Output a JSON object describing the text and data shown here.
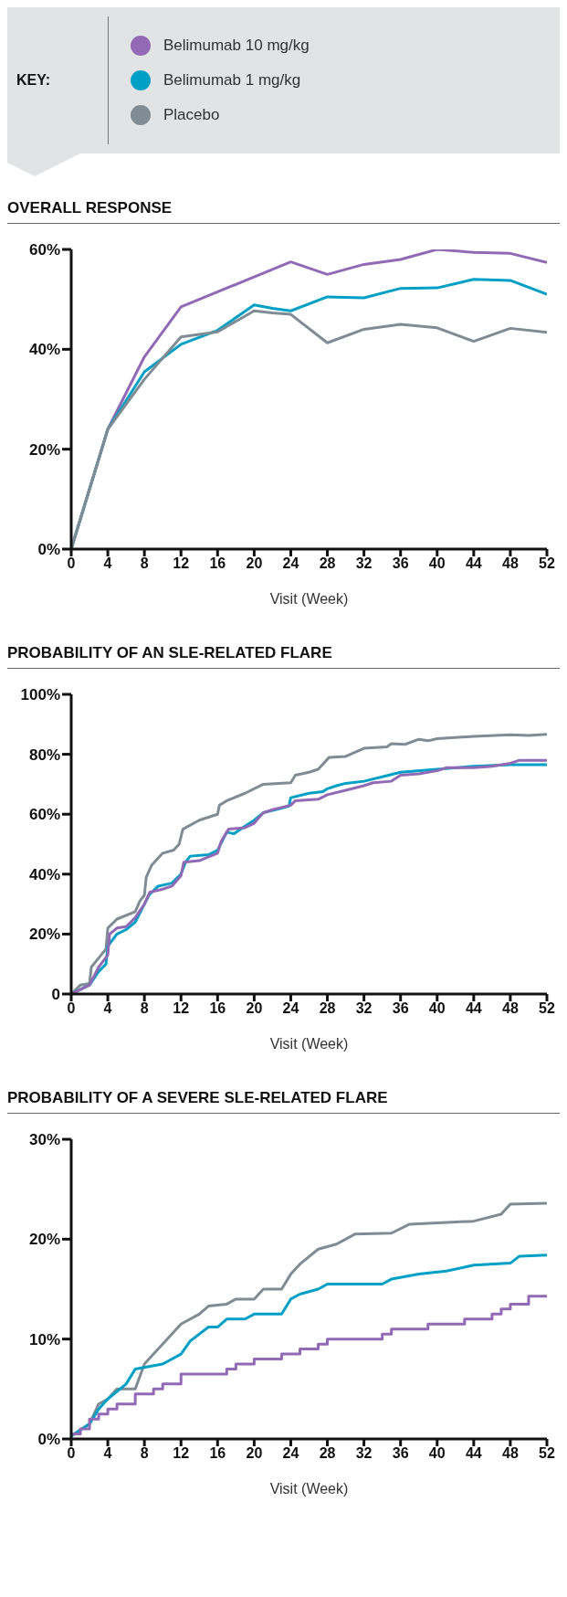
{
  "chart_data": [
    {
      "type": "line",
      "title": "OVERALL RESPONSE",
      "xlabel": "Visit (Week)",
      "legend_title": "KEY:",
      "legend": "top",
      "xlim": [
        0,
        52
      ],
      "xticks": [
        0,
        4,
        8,
        12,
        16,
        20,
        24,
        28,
        32,
        36,
        40,
        44,
        48,
        52
      ],
      "ylim": [
        0,
        60
      ],
      "yticks": [
        {
          "value": 0,
          "label": "0%"
        },
        {
          "value": 20,
          "label": "20%"
        },
        {
          "value": 40,
          "label": "40%"
        },
        {
          "value": 60,
          "label": "60%"
        }
      ],
      "grid": false,
      "marker": "none",
      "series": [
        {
          "name": "Belimumab 10 mg/kg",
          "color": "#9169b5",
          "x": [
            0,
            4,
            8,
            12,
            24,
            28,
            32,
            36,
            40,
            44,
            48,
            52
          ],
          "values": [
            0,
            24,
            38.5,
            48.5,
            57.5,
            55,
            57,
            58,
            60,
            59.4,
            59.2,
            57.4
          ]
        },
        {
          "name": "Belimumab 1 mg/kg",
          "color": "#00a0c6",
          "x": [
            0,
            4,
            8,
            12,
            16,
            20,
            22,
            24,
            28,
            32,
            36,
            40,
            44,
            48,
            52
          ],
          "values": [
            0,
            24,
            35.5,
            41,
            43.8,
            48.9,
            48.2,
            47.7,
            50.5,
            50.3,
            52.2,
            52.3,
            54,
            53.8,
            51
          ]
        },
        {
          "name": "Placebo",
          "color": "#7f8c93",
          "x": [
            0,
            4,
            8,
            12,
            16,
            20,
            22,
            24,
            28,
            32,
            36,
            40,
            44,
            48,
            52
          ],
          "values": [
            0,
            24,
            34,
            42.5,
            43.5,
            47.7,
            47.3,
            47,
            41.3,
            44,
            45,
            44.3,
            41.6,
            44.2,
            43.4
          ]
        }
      ]
    },
    {
      "type": "line",
      "title": "PROBABILITY OF AN SLE-RELATED FLARE",
      "xlabel": "Visit (Week)",
      "xlim": [
        0,
        52
      ],
      "xticks": [
        0,
        4,
        8,
        12,
        16,
        20,
        24,
        28,
        32,
        36,
        40,
        44,
        48,
        52
      ],
      "ylim": [
        0,
        100
      ],
      "yticks": [
        0,
        {
          "value": 20,
          "label": "20%"
        },
        {
          "value": 40,
          "label": "40%"
        },
        {
          "value": 60,
          "label": "60%"
        },
        {
          "value": 80,
          "label": "80%"
        },
        {
          "value": 100,
          "label": "100%"
        }
      ],
      "grid": false,
      "marker": "none",
      "series": [
        {
          "color": "#7f8c93",
          "x": [
            0,
            1,
            2,
            2.2,
            3,
            3.8,
            4,
            5,
            7,
            7.5,
            8,
            8.2,
            8.8,
            10,
            11.2,
            11.8,
            12.2,
            14,
            16,
            16.2,
            17,
            19,
            21,
            24,
            24.5,
            26,
            27,
            28.2,
            30,
            32,
            34.5,
            35,
            36.5,
            38,
            39,
            40,
            44,
            48,
            50,
            52
          ],
          "values": [
            0,
            3,
            3.5,
            9,
            12,
            15,
            22,
            25,
            27.5,
            31,
            33,
            39,
            43,
            47,
            48,
            50,
            55,
            58,
            60,
            63,
            64.5,
            67,
            70,
            70.5,
            73,
            74,
            75,
            79,
            79.3,
            82,
            82.5,
            83.5,
            83.3,
            85,
            84.5,
            85.2,
            86,
            86.5,
            86.3,
            86.7
          ]
        },
        {
          "color": "#00a0c6",
          "x": [
            0,
            2,
            3,
            3.8,
            4,
            5,
            6,
            7,
            8,
            8.5,
            9.5,
            11,
            12,
            12.5,
            13,
            15,
            16,
            17,
            17.8,
            19,
            20,
            21,
            23,
            23.8,
            24,
            26,
            27.5,
            28,
            29,
            30,
            32,
            34,
            36,
            40,
            44,
            48,
            52
          ],
          "values": [
            0,
            3,
            7.5,
            10,
            16,
            20,
            21.5,
            24,
            30,
            33,
            36,
            37,
            40,
            44,
            46,
            46.5,
            48,
            54,
            53.5,
            56,
            58,
            60.5,
            62,
            62.7,
            65.5,
            67,
            67.5,
            68.5,
            69.5,
            70.3,
            71,
            72.5,
            74,
            75,
            76,
            76.5,
            76.5
          ]
        },
        {
          "color": "#9169b5",
          "x": [
            0,
            2,
            3,
            4,
            4.2,
            5,
            6,
            7,
            8,
            8.6,
            10,
            11,
            12,
            12.3,
            14,
            16,
            16.4,
            17.2,
            19,
            20,
            21,
            22,
            24,
            24.5,
            27,
            28,
            30,
            32,
            33,
            35,
            36,
            38,
            40,
            41,
            44,
            46,
            48,
            49,
            52
          ],
          "values": [
            0,
            3,
            9,
            13,
            20,
            22,
            22.5,
            25.5,
            30,
            34,
            35,
            36,
            39.5,
            44,
            44.5,
            47,
            51,
            55,
            55.5,
            57,
            60.5,
            61.5,
            63,
            64.5,
            65,
            66.5,
            68,
            69.5,
            70.5,
            71,
            73,
            73.5,
            74.5,
            75.5,
            75.5,
            76,
            77,
            78,
            78
          ]
        }
      ]
    },
    {
      "type": "line",
      "title": "PROBABILITY OF A SEVERE SLE-RELATED FLARE",
      "xlabel": "Visit (Week)",
      "xlim": [
        0,
        52
      ],
      "xticks": [
        0,
        4,
        8,
        12,
        16,
        20,
        24,
        28,
        32,
        36,
        40,
        44,
        48,
        52
      ],
      "ylim": [
        0,
        30
      ],
      "yticks": [
        {
          "value": 0,
          "label": "0%"
        },
        {
          "value": 10,
          "label": "10%"
        },
        {
          "value": 20,
          "label": "20%"
        },
        {
          "value": 30,
          "label": "30%"
        }
      ],
      "grid": false,
      "marker": "none",
      "series": [
        {
          "color": "#7f8c93",
          "x": [
            0,
            2,
            3,
            4,
            5,
            7,
            8,
            9,
            11,
            12,
            14,
            15,
            17,
            18,
            20,
            21,
            23,
            24,
            25,
            27,
            29,
            30,
            31,
            35,
            37,
            44,
            47,
            48,
            52
          ],
          "values": [
            0.3,
            1.5,
            3.5,
            4,
            5,
            5,
            7.5,
            8.5,
            10.5,
            11.5,
            12.5,
            13.3,
            13.5,
            14,
            14,
            15,
            15,
            16.5,
            17.5,
            19,
            19.5,
            20,
            20.5,
            20.6,
            21.5,
            21.8,
            22.5,
            23.5,
            23.6
          ]
        },
        {
          "color": "#00a0c6",
          "x": [
            0,
            2,
            3,
            4,
            6,
            7,
            10,
            12,
            13,
            14,
            15,
            16,
            17,
            19,
            20,
            23,
            24,
            25,
            27,
            28,
            34,
            35,
            38,
            41,
            44,
            48,
            49,
            52
          ],
          "values": [
            0.3,
            1.5,
            3,
            4,
            5.5,
            7,
            7.5,
            8.5,
            9.8,
            10.5,
            11.2,
            11.2,
            12,
            12,
            12.5,
            12.5,
            14,
            14.5,
            15,
            15.5,
            15.5,
            16,
            16.5,
            16.8,
            17.4,
            17.6,
            18.3,
            18.4
          ]
        },
        {
          "type": "step",
          "color": "#9169b5",
          "x": [
            0,
            1,
            2,
            3,
            4,
            5,
            7,
            9,
            10,
            12,
            17,
            18,
            20,
            23,
            25,
            27,
            28,
            34,
            35,
            39,
            43,
            46,
            47,
            48,
            50,
            52
          ],
          "values": [
            0.5,
            1,
            2,
            2.5,
            3,
            3.5,
            4.5,
            5,
            5.5,
            6.5,
            7,
            7.5,
            8,
            8.5,
            9,
            9.5,
            10,
            10.5,
            11,
            11.5,
            12,
            12.5,
            13,
            13.5,
            14.3,
            14.3
          ]
        }
      ]
    }
  ]
}
